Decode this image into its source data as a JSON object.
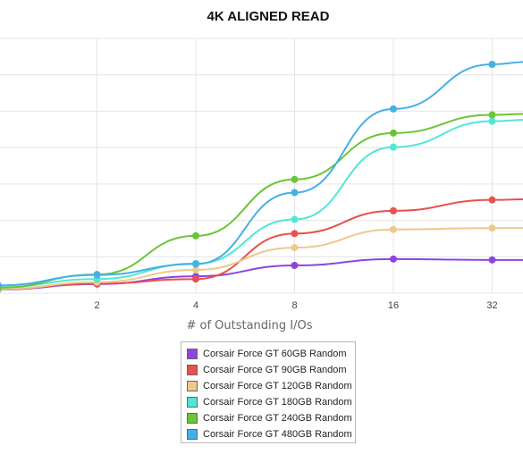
{
  "chart_data": {
    "type": "line",
    "title": "4K ALIGNED READ",
    "xlabel": "# of Outstanding I/Os",
    "ylabel": "",
    "x_scale": "log2",
    "x": [
      1,
      2,
      4,
      8,
      16,
      32
    ],
    "x_ticks": [
      "2",
      "4",
      "8",
      "16",
      "32"
    ],
    "grid": true,
    "legend_position": "bottom-center",
    "series": [
      {
        "name": "Corsair Force GT 60GB Random",
        "color": "#8e44e0",
        "values": [
          0.4,
          1.0,
          1.85,
          3.05,
          3.75,
          3.65
        ]
      },
      {
        "name": "Corsair Force GT 90GB Random",
        "color": "#e8514e",
        "values": [
          0.45,
          1.05,
          1.55,
          6.55,
          9.05,
          10.25
        ]
      },
      {
        "name": "Corsair Force GT 120GB Random",
        "color": "#eec88a",
        "values": [
          0.45,
          1.2,
          2.55,
          5.0,
          7.0,
          7.15
        ]
      },
      {
        "name": "Corsair Force GT 180GB Random",
        "color": "#52e6d6",
        "values": [
          0.65,
          1.55,
          3.25,
          8.1,
          16.05,
          18.9
        ]
      },
      {
        "name": "Corsair Force GT 240GB Random",
        "color": "#6cc437",
        "values": [
          0.6,
          2.05,
          6.3,
          12.5,
          17.6,
          19.6
        ]
      },
      {
        "name": "Corsair Force GT 480GB Random",
        "color": "#45b0e6",
        "values": [
          0.85,
          2.0,
          3.2,
          11.05,
          20.25,
          25.15
        ]
      }
    ]
  }
}
